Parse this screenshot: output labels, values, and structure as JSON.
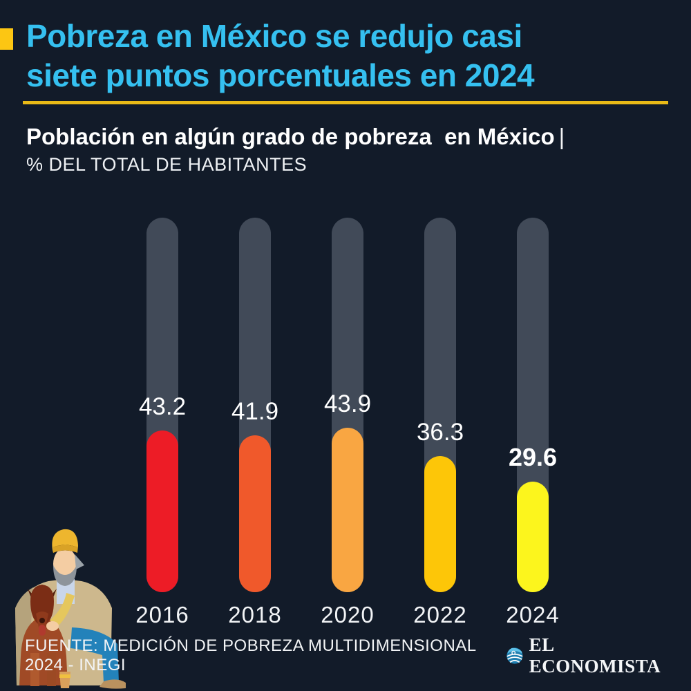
{
  "colors": {
    "background": "#121b29",
    "title_cyan": "#35c0f0",
    "accent_yellow": "#fcc613",
    "divider_gold": "#e9ba17",
    "track_gray": "#414a58",
    "text_white": "#ffffff"
  },
  "header": {
    "title_line1": "Pobreza en México se redujo casi",
    "title_line2": "siete puntos porcentuales en 2024"
  },
  "subtitle": {
    "bold": "Población en algún grado de pobreza  en México",
    "separator": "|",
    "light": "% DEL TOTAL DE HABITANTES"
  },
  "chart_data": {
    "type": "bar",
    "title": "Población en algún grado de pobreza en México",
    "ylabel": "% DEL TOTAL DE HABITANTES",
    "xlabel": "",
    "categories": [
      "2016",
      "2018",
      "2020",
      "2022",
      "2024"
    ],
    "values": [
      43.2,
      41.9,
      43.9,
      36.3,
      29.6
    ],
    "value_labels": [
      "43.2",
      "41.9",
      "43.9",
      "36.3",
      "29.6"
    ],
    "bar_colors": [
      "#ed1c26",
      "#f0592b",
      "#f9a642",
      "#fdc608",
      "#fcf51d"
    ],
    "track_color": "#414a58",
    "ylim": [
      0,
      100
    ],
    "grid": false,
    "legend_position": "none",
    "highlight_index": 4,
    "bar_style": "rounded-pill-on-track"
  },
  "footer": {
    "source": "FUENTE: MEDICIÓN DE POBREZA MULTIDIMENSIONAL 2024 - INEGI",
    "brand": "EL ECONOMISTA"
  },
  "illustration": {
    "description": "homeless man with yellow beanie and blanket sitting with dog and cup"
  }
}
